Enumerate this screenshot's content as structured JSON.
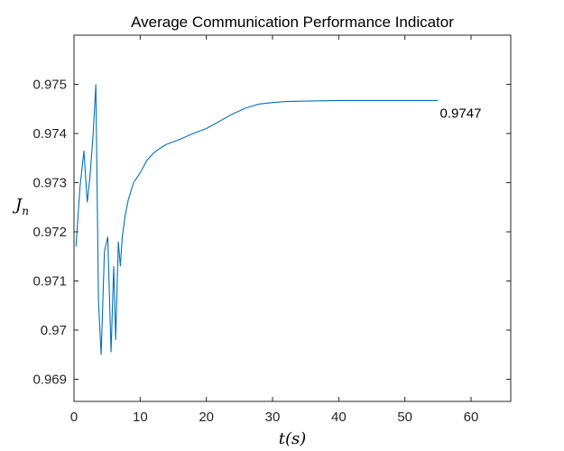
{
  "chart_data": {
    "type": "line",
    "title": "Average Communication Performance Indicator",
    "xlabel": "t(s)",
    "ylabel": "J",
    "ylabel_subscript": "n",
    "xlim": [
      0,
      66
    ],
    "ylim": [
      0.96855,
      0.976
    ],
    "xticks": [
      0,
      10,
      20,
      30,
      40,
      50,
      60
    ],
    "yticks": [
      0.969,
      0.97,
      0.971,
      0.972,
      0.973,
      0.974,
      0.975
    ],
    "ytick_labels": [
      "0.969",
      "0.97",
      "0.971",
      "0.972",
      "0.973",
      "0.974",
      "0.975"
    ],
    "grid": false,
    "line_color": "#0072BD",
    "annotation": {
      "text": "0.9747",
      "x": 55.3,
      "y": 0.97441
    },
    "series": [
      {
        "x": [
          0.3,
          0.9,
          1.5,
          2.0,
          2.4,
          2.9,
          3.3,
          3.7,
          4.1,
          4.6,
          5.1,
          5.6,
          6.0,
          6.3,
          6.7,
          7.0,
          7.3,
          7.7,
          8.2,
          9.0,
          10.0,
          11.0,
          12.0,
          13.0,
          14.0,
          15.0,
          16.0,
          18.0,
          20.0,
          22.0,
          24.0,
          26.0,
          28.0,
          30.0,
          32.0,
          35.0,
          40.0,
          45.0,
          50.0,
          55.0
        ],
        "y": [
          0.9717,
          0.9729,
          0.97365,
          0.9726,
          0.9731,
          0.974,
          0.975,
          0.9706,
          0.9695,
          0.9716,
          0.9719,
          0.96955,
          0.9713,
          0.9698,
          0.9718,
          0.9713,
          0.9719,
          0.9723,
          0.97265,
          0.973,
          0.9732,
          0.97345,
          0.9736,
          0.9737,
          0.97378,
          0.97383,
          0.97388,
          0.974,
          0.9741,
          0.97425,
          0.9744,
          0.97452,
          0.9746,
          0.97463,
          0.97465,
          0.97466,
          0.97467,
          0.97467,
          0.97467,
          0.97467
        ]
      }
    ]
  }
}
